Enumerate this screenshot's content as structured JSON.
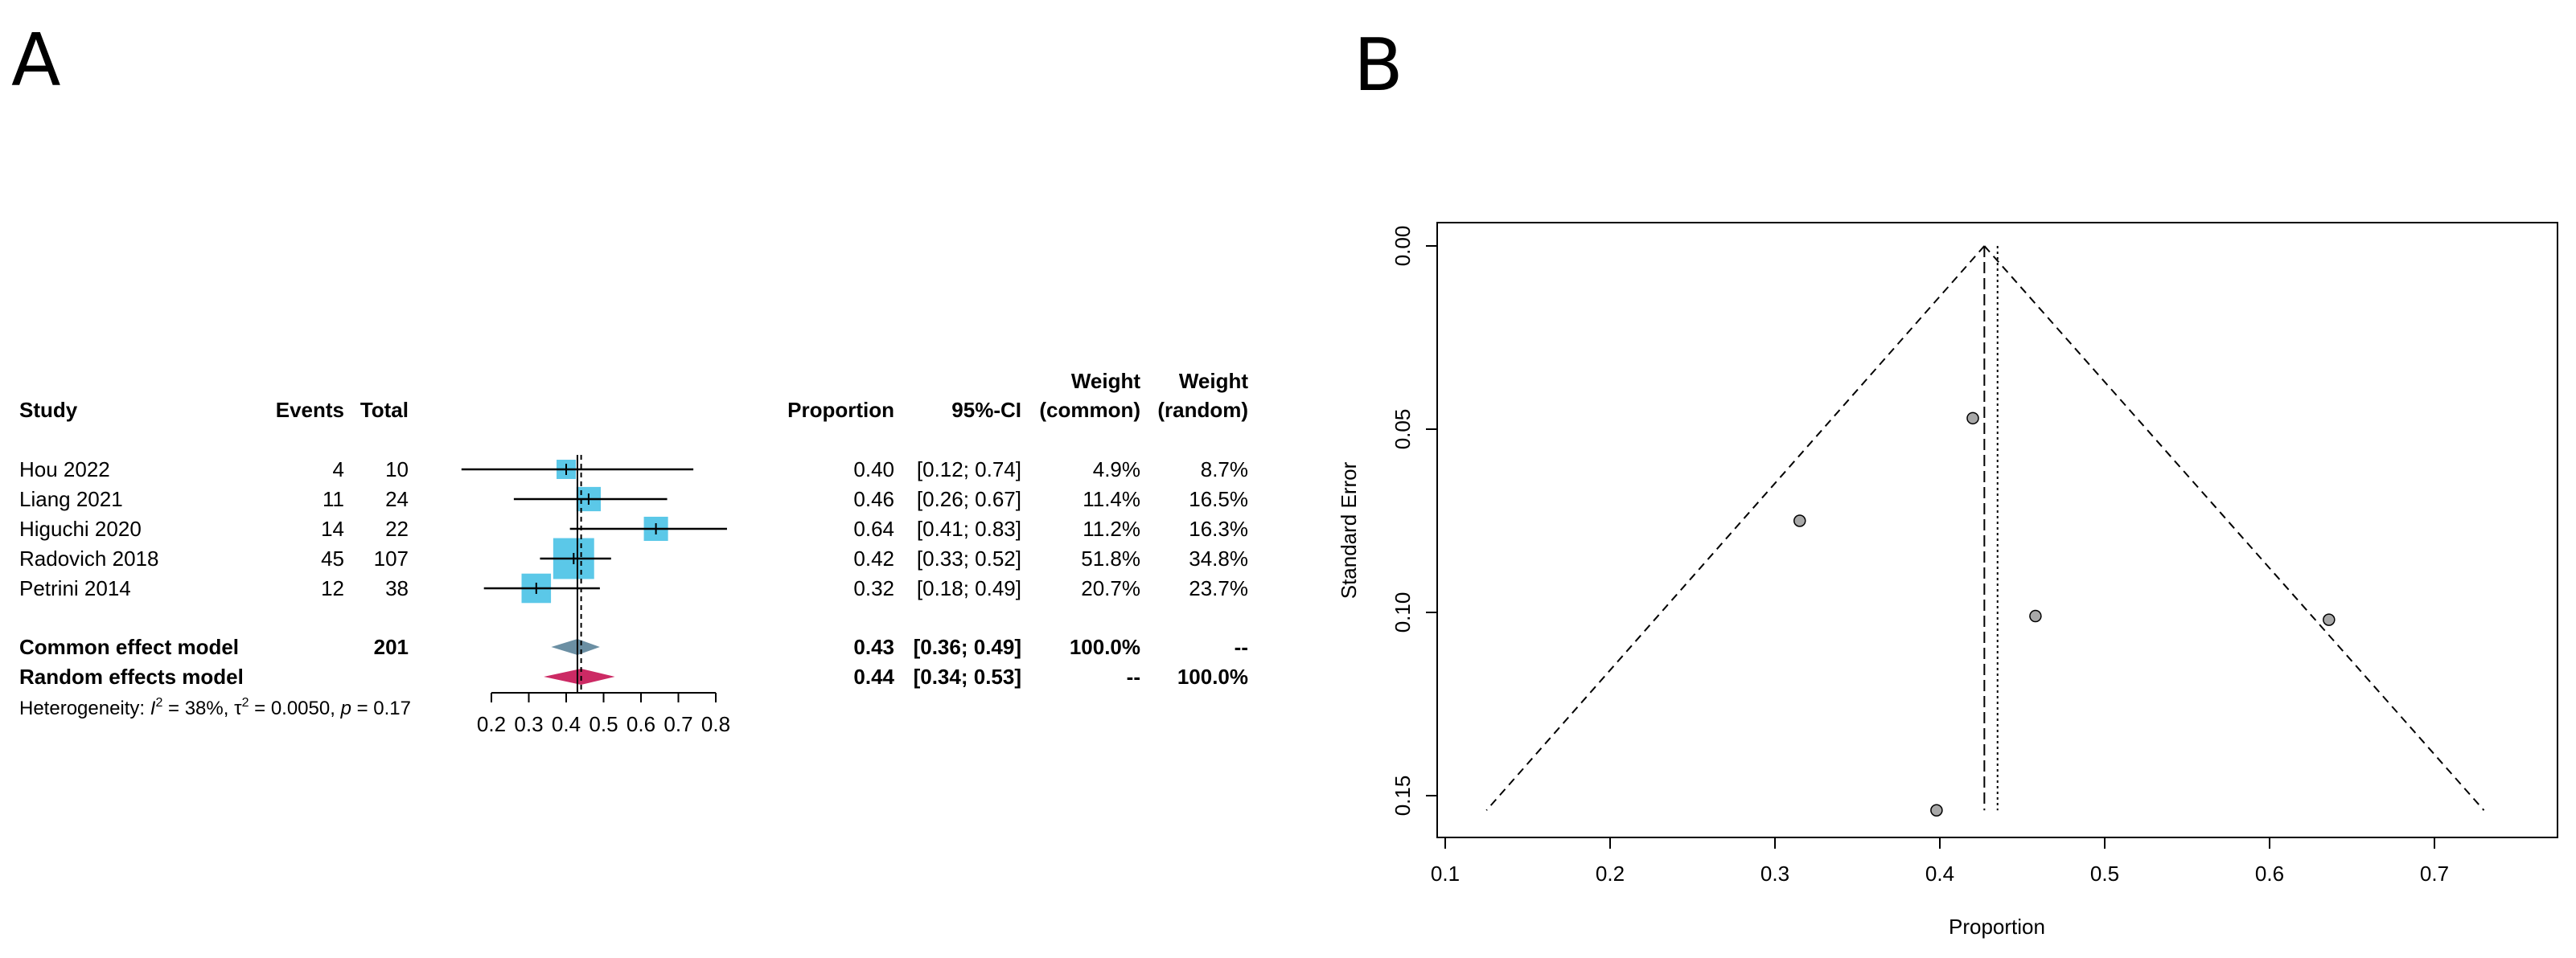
{
  "panel_labels": {
    "a": "A",
    "b": "B"
  },
  "forest": {
    "headers": {
      "study": "Study",
      "events": "Events",
      "total": "Total",
      "proportion": "Proportion",
      "ci": "95%-CI",
      "weight_top": "Weight",
      "weight_common": "(common)",
      "weight_random": "(random)"
    },
    "heterogeneity": {
      "prefix": "Heterogeneity: ",
      "i2": "I",
      "i2_tail": " = 38%, ",
      "tau2": "τ",
      "tau2_tail": " = 0.0050, ",
      "p": "p",
      "p_tail": " = 0.17"
    },
    "colors": {
      "square": "#5bc8e8",
      "common_diamond": "#6b8fa3",
      "random_diamond": "#cc2a64"
    }
  },
  "funnel": {
    "colors": {
      "point": "#a8a8a8"
    }
  },
  "chart_data": [
    {
      "type": "forest",
      "studies": [
        {
          "name": "Hou 2022",
          "events": "4",
          "total": "10",
          "prop": 0.4,
          "lower": 0.12,
          "upper": 0.74,
          "prop_text": "0.40",
          "ci_text": "[0.12; 0.74]",
          "w_common": "4.9%",
          "w_random": "8.7%",
          "weight": 4.9
        },
        {
          "name": "Liang 2021",
          "events": "11",
          "total": "24",
          "prop": 0.46,
          "lower": 0.26,
          "upper": 0.67,
          "prop_text": "0.46",
          "ci_text": "[0.26; 0.67]",
          "w_common": "11.4%",
          "w_random": "16.5%",
          "weight": 11.4
        },
        {
          "name": "Higuchi 2020",
          "events": "14",
          "total": "22",
          "prop": 0.64,
          "lower": 0.41,
          "upper": 0.83,
          "prop_text": "0.64",
          "ci_text": "[0.41; 0.83]",
          "w_common": "11.2%",
          "w_random": "16.3%",
          "weight": 11.2
        },
        {
          "name": "Radovich 2018",
          "events": "45",
          "total": "107",
          "prop": 0.42,
          "lower": 0.33,
          "upper": 0.52,
          "prop_text": "0.42",
          "ci_text": "[0.33; 0.52]",
          "w_common": "51.8%",
          "w_random": "34.8%",
          "weight": 51.8
        },
        {
          "name": "Petrini 2014",
          "events": "12",
          "total": "38",
          "prop": 0.32,
          "lower": 0.18,
          "upper": 0.49,
          "prop_text": "0.32",
          "ci_text": "[0.18; 0.49]",
          "w_common": "20.7%",
          "w_random": "23.7%",
          "weight": 20.7
        }
      ],
      "models": [
        {
          "name": "Common effect model",
          "total": "201",
          "prop": 0.43,
          "lower": 0.36,
          "upper": 0.49,
          "prop_text": "0.43",
          "ci_text": "[0.36; 0.49]",
          "w_common": "100.0%",
          "w_random": "--"
        },
        {
          "name": "Random effects model",
          "total": "",
          "prop": 0.44,
          "lower": 0.34,
          "upper": 0.53,
          "prop_text": "0.44",
          "ci_text": "[0.34; 0.53]",
          "w_common": "--",
          "w_random": "100.0%"
        }
      ],
      "xaxis": {
        "range": [
          0.2,
          0.8
        ],
        "ticks": [
          0.2,
          0.3,
          0.4,
          0.5,
          0.6,
          0.7,
          0.8
        ],
        "tick_labels": [
          "0.2",
          "0.3",
          "0.4",
          "0.5",
          "0.6",
          "0.7",
          "0.8"
        ]
      },
      "reference_lines": {
        "common": 0.43,
        "random": 0.44
      }
    },
    {
      "type": "scatter",
      "title": "",
      "xlabel": "Proportion",
      "ylabel": "Standard Error",
      "xlim": [
        0.1,
        0.75
      ],
      "ylim": [
        0.0,
        0.155
      ],
      "y_reversed": true,
      "x_ticks": [
        0.1,
        0.2,
        0.3,
        0.4,
        0.5,
        0.6,
        0.7
      ],
      "x_tick_labels": [
        "0.1",
        "0.2",
        "0.3",
        "0.4",
        "0.5",
        "0.6",
        "0.7"
      ],
      "y_ticks": [
        0.0,
        0.05,
        0.1,
        0.15
      ],
      "y_tick_labels": [
        "0.00",
        "0.05",
        "0.10",
        "0.15"
      ],
      "points": [
        {
          "x": 0.42,
          "y": 0.047
        },
        {
          "x": 0.315,
          "y": 0.075
        },
        {
          "x": 0.458,
          "y": 0.101
        },
        {
          "x": 0.636,
          "y": 0.102
        },
        {
          "x": 0.398,
          "y": 0.154
        }
      ],
      "funnel_apex": {
        "x": 0.427,
        "y": 0.0
      },
      "funnel_base": {
        "left": 0.125,
        "right": 0.73,
        "y": 0.154
      },
      "common_line": 0.427,
      "random_line": 0.435
    }
  ]
}
